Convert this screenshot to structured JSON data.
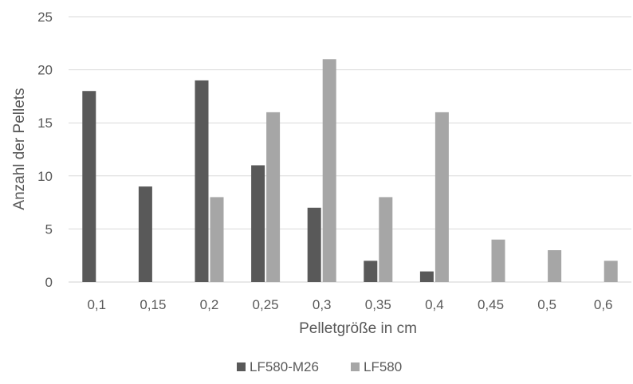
{
  "chart_data": {
    "type": "bar",
    "categories": [
      "0,1",
      "0,15",
      "0,2",
      "0,25",
      "0,3",
      "0,35",
      "0,4",
      "0,45",
      "0,5",
      "0,6"
    ],
    "series": [
      {
        "name": "LF580-M26",
        "values": [
          18,
          9,
          19,
          11,
          7,
          2,
          1,
          null,
          null,
          null
        ]
      },
      {
        "name": "LF580",
        "values": [
          null,
          null,
          8,
          16,
          21,
          8,
          16,
          4,
          3,
          2
        ]
      }
    ],
    "colors": [
      "#595959",
      "#a6a6a6"
    ],
    "xlabel": "Pelletgröße in cm",
    "ylabel": "Anzahl der Pellets",
    "ylim": [
      0,
      25
    ],
    "yticks": [
      "0",
      "5",
      "10",
      "15",
      "20",
      "25"
    ],
    "grid": true,
    "legend_position": "bottom"
  }
}
